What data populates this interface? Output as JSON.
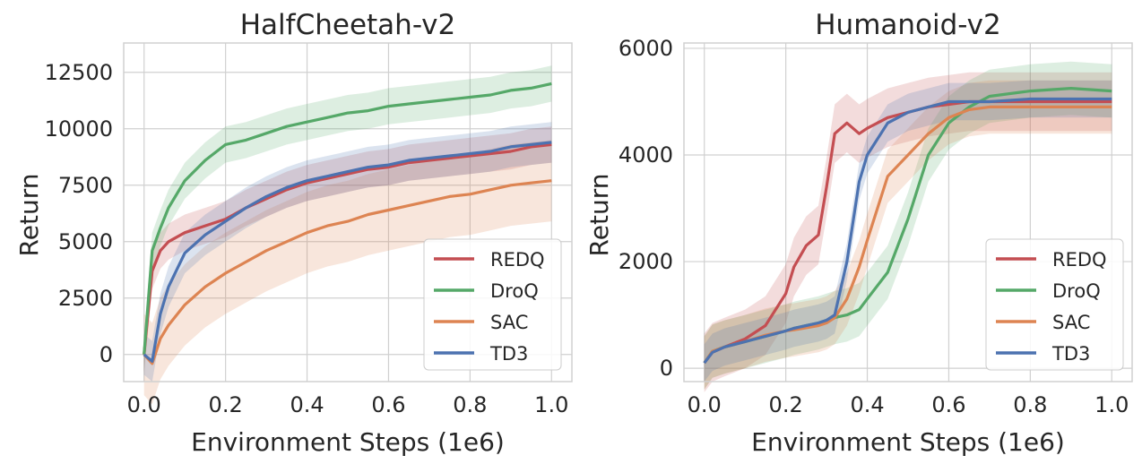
{
  "colors": {
    "REDQ": "#c44e52",
    "DroQ": "#55a868",
    "SAC": "#dd8452",
    "TD3": "#4c72b0"
  },
  "chart_data": [
    {
      "type": "line",
      "title": "HalfCheetah-v2",
      "xlabel": "Environment Steps (1e6)",
      "ylabel": "Return",
      "xlim": [
        -0.05,
        1.05
      ],
      "ylim": [
        -1200,
        13800
      ],
      "xticks": [
        0.0,
        0.2,
        0.4,
        0.6,
        0.8,
        1.0
      ],
      "xtick_labels": [
        "0.0",
        "0.2",
        "0.4",
        "0.6",
        "0.8",
        "1.0"
      ],
      "yticks": [
        0,
        2500,
        5000,
        7500,
        10000,
        12500
      ],
      "ytick_labels": [
        "0",
        "2500",
        "5000",
        "7500",
        "10000",
        "12500"
      ],
      "grid": true,
      "legend_position": "lower-right",
      "x": [
        0.0,
        0.02,
        0.04,
        0.06,
        0.1,
        0.15,
        0.2,
        0.25,
        0.3,
        0.35,
        0.4,
        0.45,
        0.5,
        0.55,
        0.6,
        0.65,
        0.7,
        0.75,
        0.8,
        0.85,
        0.9,
        0.95,
        1.0
      ],
      "series": [
        {
          "name": "REDQ",
          "values": [
            0,
            3700,
            4600,
            5000,
            5400,
            5700,
            6000,
            6500,
            6900,
            7300,
            7600,
            7800,
            8000,
            8200,
            8300,
            8500,
            8600,
            8700,
            8800,
            8900,
            9000,
            9200,
            9300
          ],
          "band": 800
        },
        {
          "name": "DroQ",
          "values": [
            0,
            4600,
            5600,
            6500,
            7700,
            8600,
            9300,
            9500,
            9800,
            10100,
            10300,
            10500,
            10700,
            10800,
            11000,
            11100,
            11200,
            11300,
            11400,
            11500,
            11700,
            11800,
            12000
          ],
          "band": 800
        },
        {
          "name": "SAC",
          "values": [
            0,
            -400,
            700,
            1300,
            2200,
            3000,
            3600,
            4100,
            4600,
            5000,
            5400,
            5700,
            5900,
            6200,
            6400,
            6600,
            6800,
            7000,
            7100,
            7300,
            7500,
            7600,
            7700
          ],
          "band": 1800
        },
        {
          "name": "TD3",
          "values": [
            0,
            -300,
            1800,
            3000,
            4500,
            5300,
            5900,
            6500,
            7000,
            7400,
            7700,
            7900,
            8100,
            8300,
            8400,
            8600,
            8700,
            8800,
            8900,
            9000,
            9200,
            9300,
            9400
          ],
          "band": 900
        }
      ]
    },
    {
      "type": "line",
      "title": "Humanoid-v2",
      "xlabel": "Environment Steps (1e6)",
      "ylabel": "Return",
      "xlim": [
        -0.05,
        1.05
      ],
      "ylim": [
        -250,
        6100
      ],
      "xticks": [
        0.0,
        0.2,
        0.4,
        0.6,
        0.8,
        1.0
      ],
      "xtick_labels": [
        "0.0",
        "0.2",
        "0.4",
        "0.6",
        "0.8",
        "1.0"
      ],
      "yticks": [
        0,
        2000,
        4000,
        6000
      ],
      "ytick_labels": [
        "0",
        "2000",
        "4000",
        "6000"
      ],
      "grid": true,
      "legend_position": "lower-right",
      "x": [
        0.0,
        0.02,
        0.05,
        0.1,
        0.15,
        0.2,
        0.22,
        0.25,
        0.28,
        0.3,
        0.32,
        0.35,
        0.38,
        0.4,
        0.45,
        0.5,
        0.55,
        0.6,
        0.65,
        0.7,
        0.8,
        0.9,
        1.0
      ],
      "series": [
        {
          "name": "REDQ",
          "values": [
            100,
            300,
            400,
            550,
            800,
            1400,
            1900,
            2300,
            2500,
            3400,
            4400,
            4600,
            4400,
            4500,
            4700,
            4800,
            4900,
            4950,
            5000,
            5000,
            5000,
            5000,
            5000
          ],
          "band": 550
        },
        {
          "name": "DroQ",
          "values": [
            100,
            320,
            400,
            500,
            600,
            700,
            750,
            800,
            850,
            900,
            950,
            1000,
            1100,
            1300,
            1800,
            2800,
            4000,
            4600,
            4900,
            5100,
            5200,
            5250,
            5200
          ],
          "band": 500
        },
        {
          "name": "SAC",
          "values": [
            100,
            320,
            400,
            500,
            620,
            700,
            720,
            760,
            800,
            850,
            950,
            1300,
            1900,
            2400,
            3600,
            4000,
            4400,
            4700,
            4850,
            4900,
            4900,
            4900,
            4900
          ],
          "band": 500
        },
        {
          "name": "TD3",
          "values": [
            100,
            300,
            400,
            500,
            600,
            700,
            750,
            800,
            850,
            900,
            1000,
            2000,
            3500,
            4000,
            4600,
            4800,
            4900,
            5000,
            5000,
            5000,
            5050,
            5050,
            5050
          ],
          "band": 350
        }
      ]
    }
  ]
}
